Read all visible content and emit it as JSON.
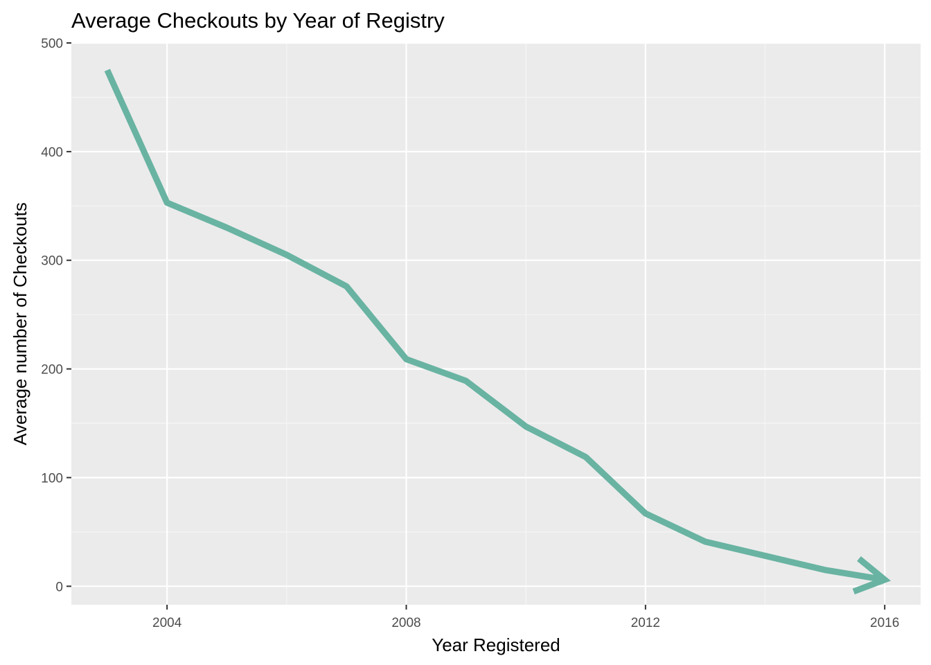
{
  "chart_data": {
    "type": "line",
    "title": "Average Checkouts by Year of Registry",
    "xlabel": "Year Registered",
    "ylabel": "Average number of Checkouts",
    "xlim": [
      2002.4,
      2016.6
    ],
    "ylim": [
      -17,
      500
    ],
    "x_ticks": [
      2004,
      2008,
      2012,
      2016
    ],
    "y_ticks": [
      0,
      100,
      200,
      300,
      400,
      500
    ],
    "grid": true,
    "legend": "none",
    "arrow_at_end": true,
    "series": [
      {
        "x": [
          2003,
          2004,
          2005,
          2006,
          2007,
          2008,
          2009,
          2010,
          2011,
          2012,
          2013,
          2014,
          2015,
          2016
        ],
        "values": [
          475,
          353,
          330,
          305,
          276,
          209,
          189,
          147,
          119,
          67,
          41,
          28,
          15,
          6
        ],
        "color": "#69b3a2"
      }
    ]
  },
  "colors": {
    "panel_background": "#ebebeb",
    "grid_major": "#ffffff",
    "grid_minor": "#f5f5f5",
    "tick_text": "#4d4d4d"
  }
}
